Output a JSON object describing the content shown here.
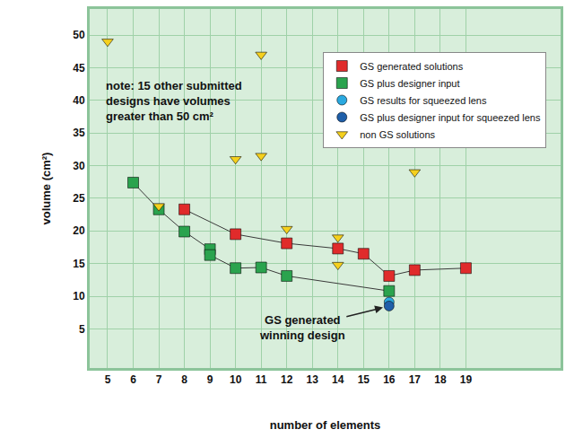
{
  "chart_data": {
    "type": "scatter",
    "x_label": "number of elements",
    "y_label": "volume (cm²)",
    "xlim": [
      4.3,
      22.7
    ],
    "ylim": [
      -1,
      54
    ],
    "xticks": [
      5,
      6,
      7,
      8,
      9,
      10,
      11,
      12,
      13,
      14,
      15,
      16,
      17,
      18,
      19
    ],
    "yticks": [
      5,
      10,
      15,
      20,
      25,
      30,
      35,
      40,
      45,
      50
    ],
    "grid": true,
    "legend": "top right",
    "annotations": [
      {
        "text": [
          "note: 15 other submitted",
          "designs have volumes",
          "greater than 50 cm²"
        ]
      },
      {
        "text": [
          "GS generated",
          "winning design"
        ],
        "x": 16,
        "y": 8.5
      }
    ],
    "series": [
      {
        "name": "GS generated solutions",
        "color": "#e02b2b",
        "marker": "square",
        "line_style": "solid",
        "x": [
          8,
          10,
          12,
          14,
          15,
          16,
          17,
          19
        ],
        "values": [
          23.3,
          19.5,
          18.1,
          17.3,
          16.5,
          13.1,
          14,
          14.3
        ]
      },
      {
        "name": "GS plus designer input",
        "color": "#2aa34e",
        "marker": "square",
        "line_style": "solid",
        "x": [
          6,
          7,
          8,
          9,
          9,
          10,
          11,
          12,
          16
        ],
        "values": [
          27.4,
          23.3,
          19.9,
          17.2,
          16.3,
          14.3,
          14.4,
          13.1,
          10.8
        ]
      },
      {
        "name": "GS results for squeezed lens",
        "color": "#2aa9e0",
        "marker": "circle",
        "line_style": "none",
        "x": [
          16
        ],
        "values": [
          9.1
        ]
      },
      {
        "name": "GS plus designer input for squeezed lens",
        "color": "#1f5fa9",
        "marker": "circle",
        "line_style": "none",
        "x": [
          16
        ],
        "values": [
          8.5
        ]
      },
      {
        "name": "non GS solutions",
        "color": "#f5d01e",
        "marker": "triangle-down",
        "line_style": "none",
        "x": [
          5,
          7,
          10,
          11,
          11,
          12,
          14,
          14,
          17
        ],
        "values": [
          49,
          23.8,
          31,
          47,
          31.5,
          20.3,
          19,
          14.8,
          29
        ]
      }
    ]
  }
}
